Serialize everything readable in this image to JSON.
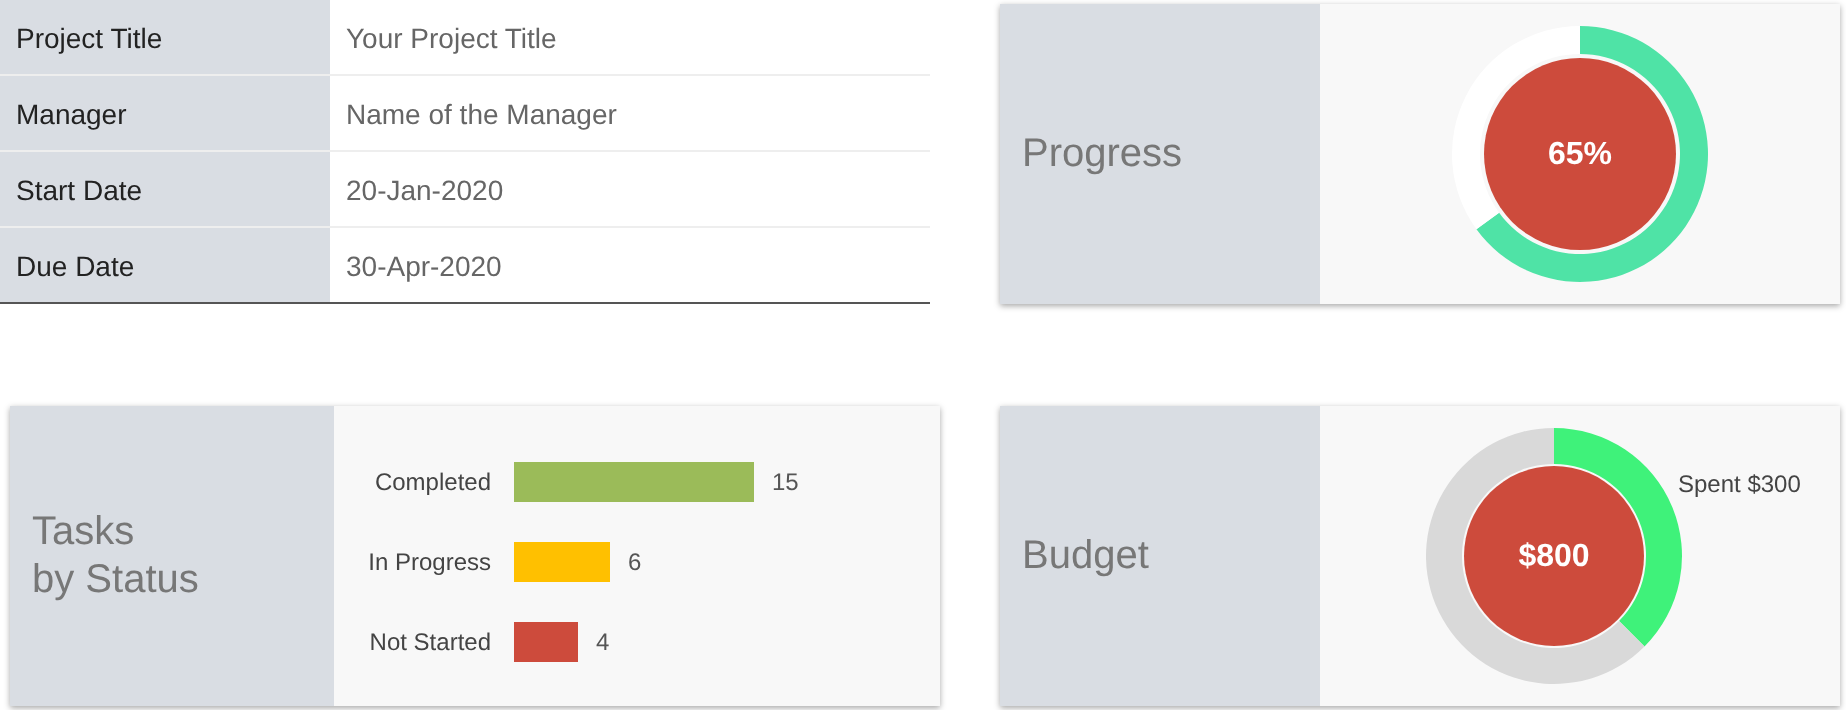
{
  "chart_data": [
    {
      "type": "other",
      "annotations": [
        "Project Title",
        "Your Project Title",
        "Manager",
        "Name of the Manager",
        "Start Date",
        "20-Jan-2020",
        "Due Date",
        "30-Apr-2020"
      ]
    },
    {
      "type": "donut",
      "title": "Progress",
      "categories": [
        null,
        null
      ],
      "values": [
        65,
        35
      ],
      "colors": [
        "#4fe3a6",
        "#ffffff"
      ],
      "value_labels": [
        "65%",
        null
      ]
    },
    {
      "type": "bar",
      "orientation": "horizontal",
      "title": "Tasks\nby Status",
      "categories": [
        "Completed",
        "In Progress",
        "Not Started"
      ],
      "values": [
        15,
        6,
        4
      ],
      "colors": [
        "#9bbb59",
        "#ffc000",
        "#cd4b3c"
      ],
      "data_labels": true
    },
    {
      "type": "donut",
      "title": "Budget",
      "categories": [
        "Spent",
        null
      ],
      "values": [
        300,
        500
      ],
      "colors": [
        "#3ff27a",
        "#d9d9d9"
      ],
      "value_labels": [
        "$300",
        null
      ],
      "annotations": [
        "$800"
      ]
    }
  ]
}
